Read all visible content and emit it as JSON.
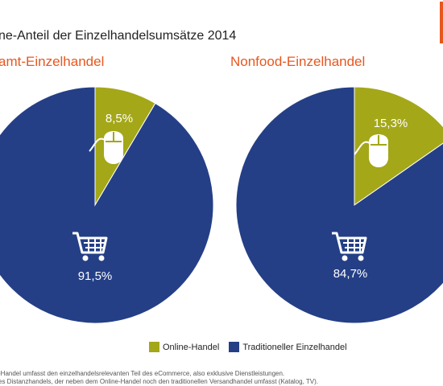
{
  "title": "ne-Anteil der Einzelhandelsumsätze 2014",
  "footnote_lines": [
    ":",
    "-Handel umfasst den einzelhandelsrelevanten Teil des eCommerce, also exklusive Dienstleistungen.",
    "es Distanzhandels, der neben dem Online-Handel noch den traditionellen Versandhandel umfasst (Katalog, TV)."
  ],
  "colors": {
    "online": "#a4a718",
    "traditional": "#243f86",
    "subtitle": "#e8571e",
    "accent": "#e8571e"
  },
  "icons": [
    "mouse-icon",
    "shopping-cart-icon"
  ],
  "chart_data": [
    {
      "type": "pie",
      "title": "amt-Einzelhandel",
      "categories": [
        "Online-Handel",
        "Traditioneller Einzelhandel"
      ],
      "values": [
        8.5,
        91.5
      ],
      "value_labels": [
        "8,5%",
        "91,5%"
      ],
      "legend": "bottom"
    },
    {
      "type": "pie",
      "title": "Nonfood-Einzelhandel",
      "categories": [
        "Online-Handel",
        "Traditioneller Einzelhandel"
      ],
      "values": [
        15.3,
        84.7
      ],
      "value_labels": [
        "15,3%",
        "84,7%"
      ],
      "legend": "bottom"
    }
  ],
  "legend": {
    "online_label": "Online-Handel",
    "traditional_label": "Traditioneller Einzelhandel"
  }
}
